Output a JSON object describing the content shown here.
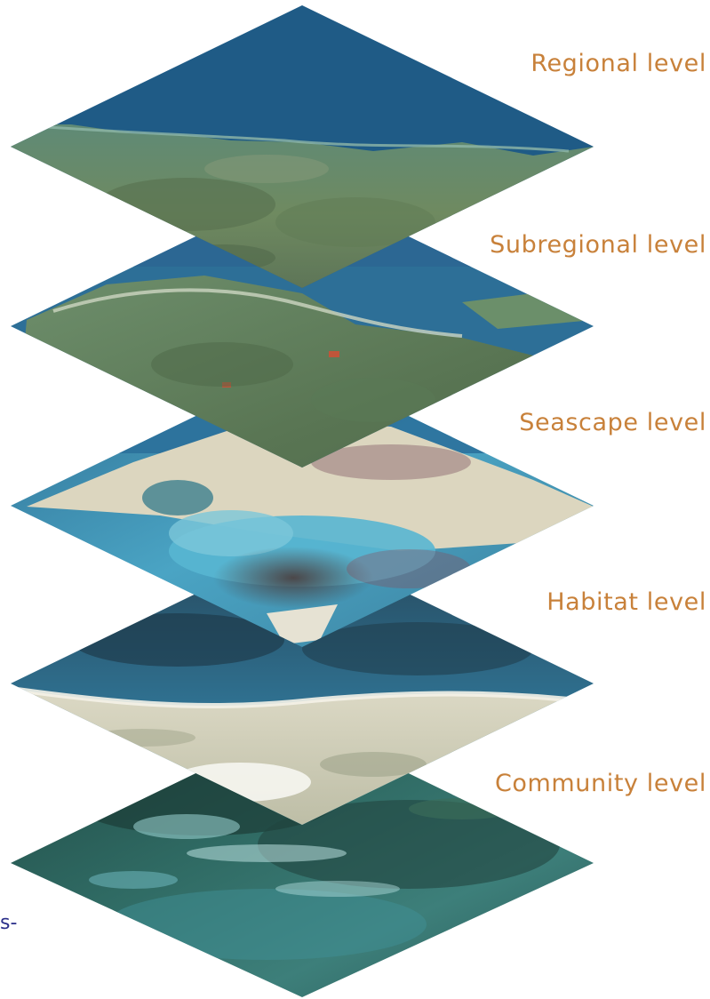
{
  "levels": [
    {
      "id": "regional",
      "label": "Regional level"
    },
    {
      "id": "subregional",
      "label": "Subregional level"
    },
    {
      "id": "seascape",
      "label": "Seascape level"
    },
    {
      "id": "habitat",
      "label": "Habitat level"
    },
    {
      "id": "community",
      "label": "Community level"
    }
  ],
  "fragments": {
    "left_edge_text": "s-"
  },
  "colors": {
    "label": "#c8813a",
    "ocean_deep": "#1f5b86",
    "ocean_shallow": "#3f9fc7",
    "land_green": "#5d7a5a",
    "sand": "#e9e6d8",
    "reef": "#2e5a52"
  }
}
